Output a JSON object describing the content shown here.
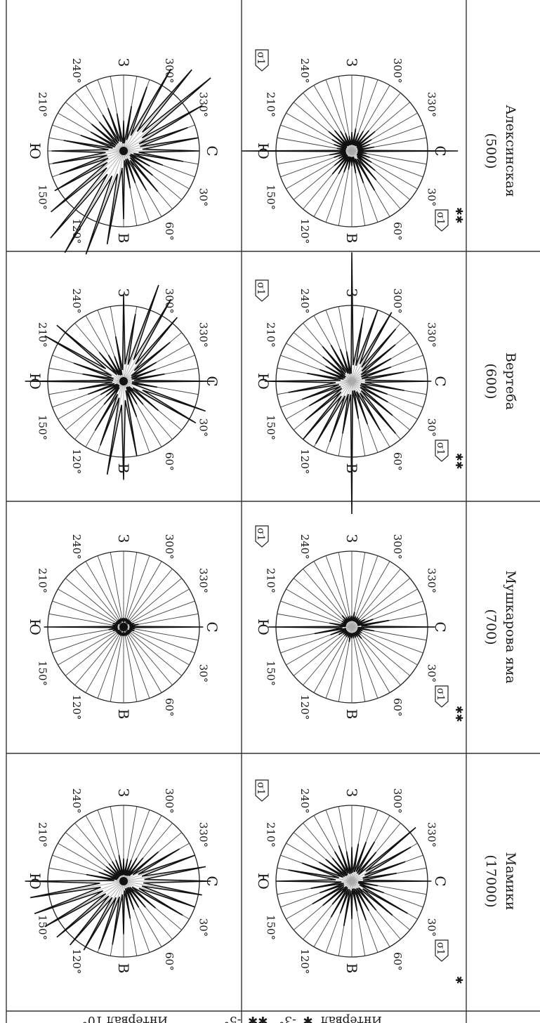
{
  "row_labels": {
    "top_prefix": "Интервал",
    "top_mid": "-3°",
    "top_end": "-5°",
    "bottom": "Интервал 10°"
  },
  "directions": {
    "north": "С",
    "south": "Ю",
    "east": "В",
    "west": "З"
  },
  "degree_labels": [
    "30°",
    "60°",
    "120°",
    "150°",
    "210°",
    "240°",
    "300°",
    "330°"
  ],
  "sigma_label": "σ1",
  "columns": [
    {
      "title": "Мамики",
      "depth": "(17000)",
      "marker": "✱",
      "top_lengths": [
        1.05,
        0.35,
        0.45,
        0.85,
        0.7,
        0.5,
        0.45,
        0.55,
        0.4,
        0.5,
        0.6,
        0.45,
        0.55,
        0.4,
        0.5,
        0.6,
        0.45,
        0.55,
        1.0,
        0.85,
        0.7,
        0.5,
        0.45,
        0.4,
        0.45,
        0.5,
        0.4,
        0.45,
        0.5,
        0.55,
        0.6,
        0.5,
        1.1,
        0.9,
        0.75,
        0.6
      ],
      "bottom_lengths": [
        1.15,
        1.05,
        1.0,
        0.9,
        0.55,
        0.45,
        0.4,
        0.4,
        0.5,
        0.7,
        0.85,
        0.95,
        1.05,
        1.1,
        1.15,
        1.2,
        1.25,
        1.25,
        1.3,
        0.5,
        0.35,
        0.3,
        0.3,
        0.3,
        0.3,
        0.3,
        0.35,
        0.3,
        0.3,
        0.3,
        0.35,
        0.4,
        0.6,
        0.85,
        1.0,
        1.1
      ]
    },
    {
      "title": "Мушкарова яма",
      "depth": "(700)",
      "marker": "✱✱",
      "top_lengths": [
        1.1,
        0.3,
        0.15,
        0.15,
        0.15,
        0.2,
        0.15,
        0.15,
        0.15,
        0.15,
        0.2,
        0.15,
        0.15,
        0.15,
        0.15,
        0.2,
        0.3,
        0.5,
        1.1,
        0.3,
        0.15,
        0.15,
        0.15,
        0.2,
        0.15,
        0.15,
        0.15,
        0.15,
        0.2,
        0.15,
        0.15,
        0.15,
        0.15,
        0.2,
        0.3,
        0.5
      ],
      "bottom_lengths": [
        1.05,
        0.15,
        0.15,
        0.12,
        0.12,
        0.12,
        0.12,
        0.12,
        0.12,
        0.12,
        0.12,
        0.12,
        0.12,
        0.12,
        0.12,
        0.12,
        0.15,
        0.2,
        1.05,
        0.15,
        0.15,
        0.12,
        0.12,
        0.12,
        0.12,
        0.12,
        0.12,
        0.12,
        0.12,
        0.12,
        0.12,
        0.12,
        0.12,
        0.12,
        0.15,
        0.2
      ]
    },
    {
      "title": "Вертеба",
      "depth": "(600)",
      "marker": "✱✱",
      "top_lengths": [
        1.05,
        0.7,
        0.5,
        0.55,
        0.7,
        0.9,
        0.75,
        0.6,
        0.5,
        1.75,
        0.7,
        0.85,
        0.95,
        1.0,
        0.8,
        0.65,
        0.7,
        0.85,
        1.15,
        0.6,
        0.45,
        0.4,
        0.5,
        0.6,
        0.55,
        0.45,
        0.4,
        1.7,
        0.85,
        1.0,
        1.05,
        0.9,
        0.75,
        0.6,
        0.55,
        0.7
      ],
      "bottom_lengths": [
        1.2,
        0.45,
        1.15,
        1.1,
        0.6,
        0.4,
        0.35,
        0.5,
        1.0,
        1.3,
        1.25,
        0.9,
        0.75,
        0.4,
        0.3,
        0.35,
        0.5,
        0.6,
        1.3,
        0.55,
        0.7,
        1.2,
        1.15,
        0.5,
        0.4,
        0.35,
        0.6,
        1.15,
        0.9,
        1.35,
        1.25,
        1.1,
        0.8,
        0.5,
        0.45,
        0.55
      ]
    },
    {
      "title": "Алексинская",
      "depth": "(500)",
      "marker": "✱✱",
      "top_lengths": [
        1.4,
        0.2,
        0.25,
        0.3,
        0.4,
        0.5,
        0.6,
        0.45,
        0.3,
        0.2,
        0.25,
        0.3,
        0.35,
        0.4,
        0.3,
        0.2,
        0.25,
        0.3,
        1.45,
        0.2,
        0.25,
        0.3,
        0.4,
        0.35,
        0.3,
        0.25,
        0.2,
        0.25,
        0.3,
        0.25,
        0.3,
        0.35,
        0.4,
        0.3,
        0.25,
        0.3
      ],
      "bottom_lengths": [
        1.0,
        0.8,
        0.55,
        0.4,
        0.5,
        0.7,
        0.6,
        0.45,
        0.5,
        0.9,
        1.25,
        1.45,
        1.55,
        1.5,
        1.25,
        1.05,
        0.9,
        0.95,
        0.95,
        0.8,
        0.6,
        0.5,
        0.55,
        0.5,
        0.55,
        0.6,
        0.5,
        0.4,
        0.6,
        0.9,
        1.25,
        1.4,
        1.5,
        1.2,
        0.9,
        1.0
      ]
    }
  ]
}
